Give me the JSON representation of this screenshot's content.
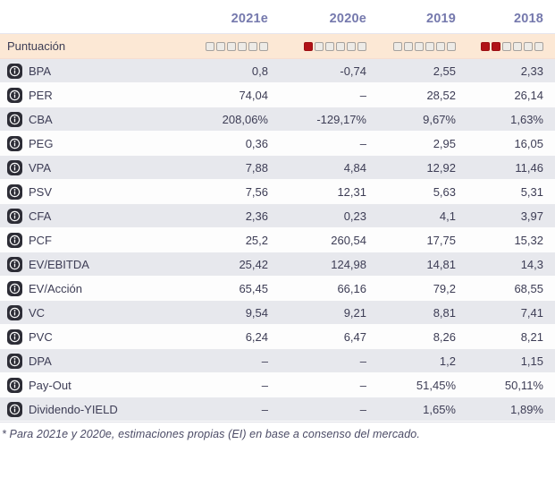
{
  "chart_data": {
    "type": "table",
    "columns": [
      "2021e",
      "2020e",
      "2019",
      "2018"
    ],
    "score_row": {
      "label": "Puntuación",
      "max_squares": 6,
      "filled_per_column": [
        0,
        1,
        0,
        2
      ]
    },
    "rows": [
      {
        "label": "BPA",
        "values": [
          "0,8",
          "-0,74",
          "2,55",
          "2,33"
        ]
      },
      {
        "label": "PER",
        "values": [
          "74,04",
          "–",
          "28,52",
          "26,14"
        ]
      },
      {
        "label": "CBA",
        "values": [
          "208,06%",
          "-129,17%",
          "9,67%",
          "1,63%"
        ]
      },
      {
        "label": "PEG",
        "values": [
          "0,36",
          "–",
          "2,95",
          "16,05"
        ]
      },
      {
        "label": "VPA",
        "values": [
          "7,88",
          "4,84",
          "12,92",
          "11,46"
        ]
      },
      {
        "label": "PSV",
        "values": [
          "7,56",
          "12,31",
          "5,63",
          "5,31"
        ]
      },
      {
        "label": "CFA",
        "values": [
          "2,36",
          "0,23",
          "4,1",
          "3,97"
        ]
      },
      {
        "label": "PCF",
        "values": [
          "25,2",
          "260,54",
          "17,75",
          "15,32"
        ]
      },
      {
        "label": "EV/EBITDA",
        "values": [
          "25,42",
          "124,98",
          "14,81",
          "14,3"
        ]
      },
      {
        "label": "EV/Acción",
        "values": [
          "65,45",
          "66,16",
          "79,2",
          "68,55"
        ]
      },
      {
        "label": "VC",
        "values": [
          "9,54",
          "9,21",
          "8,81",
          "7,41"
        ]
      },
      {
        "label": "PVC",
        "values": [
          "6,24",
          "6,47",
          "8,26",
          "8,21"
        ]
      },
      {
        "label": "DPA",
        "values": [
          "–",
          "–",
          "1,2",
          "1,15"
        ]
      },
      {
        "label": "Pay-Out",
        "values": [
          "–",
          "–",
          "51,45%",
          "50,11%"
        ]
      },
      {
        "label": "Dividendo-YIELD",
        "values": [
          "–",
          "–",
          "1,65%",
          "1,89%"
        ]
      }
    ],
    "footnote": "* Para 2021e y 2020e, estimaciones propias (EI) en base a consenso del mercado."
  },
  "icons": {
    "info": "info-icon"
  },
  "colors": {
    "accent_red": "#b11217",
    "score_row_bg": "#fce8d5",
    "alt_row_bg": "#e7e8ed",
    "header_text": "#7579ad",
    "body_text": "#3d3d55"
  }
}
